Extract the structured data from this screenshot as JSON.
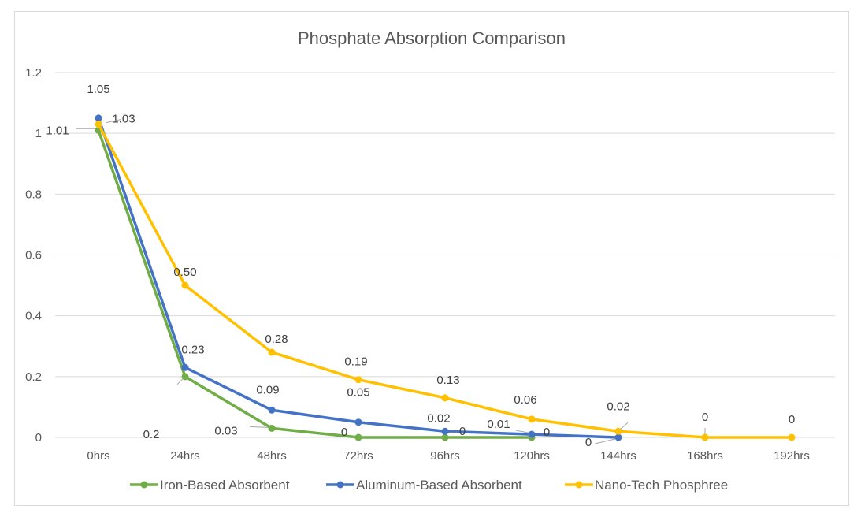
{
  "chart_data": {
    "type": "line",
    "title": "Phosphate Absorption Comparison",
    "xlabel": "",
    "ylabel": "",
    "categories": [
      "0hrs",
      "24hrs",
      "48hrs",
      "72hrs",
      "96hrs",
      "120hrs",
      "144hrs",
      "168hrs",
      "192hrs"
    ],
    "ylim": [
      0,
      1.2
    ],
    "yticks": [
      "0",
      "0.2",
      "0.4",
      "0.6",
      "0.8",
      "1",
      "1.2"
    ],
    "grid": true,
    "legend_position": "bottom",
    "series": [
      {
        "name": "Iron-Based Absorbent",
        "color": "#70ad47",
        "values": [
          1.01,
          0.2,
          0.03,
          0,
          0,
          0,
          null,
          null,
          null
        ],
        "labels": [
          "1.01",
          "0.2",
          "0.03",
          "0",
          "0",
          "0",
          null,
          null,
          null
        ]
      },
      {
        "name": "Aluminum-Based Absorbent",
        "color": "#4472c4",
        "values": [
          1.05,
          0.23,
          0.09,
          0.05,
          0.02,
          0.01,
          0,
          null,
          null
        ],
        "labels": [
          "1.05",
          "0.23",
          "0.09",
          "0.05",
          "0.02",
          "0.01",
          "0",
          null,
          null
        ]
      },
      {
        "name": "Nano-Tech Phosphree",
        "color": "#ffc000",
        "values": [
          1.03,
          0.5,
          0.28,
          0.19,
          0.13,
          0.06,
          0.02,
          0,
          0
        ],
        "labels": [
          "1.03",
          "0.50",
          "0.28",
          "0.19",
          "0.13",
          "0.06",
          "0.02",
          "0",
          "0"
        ]
      }
    ]
  }
}
